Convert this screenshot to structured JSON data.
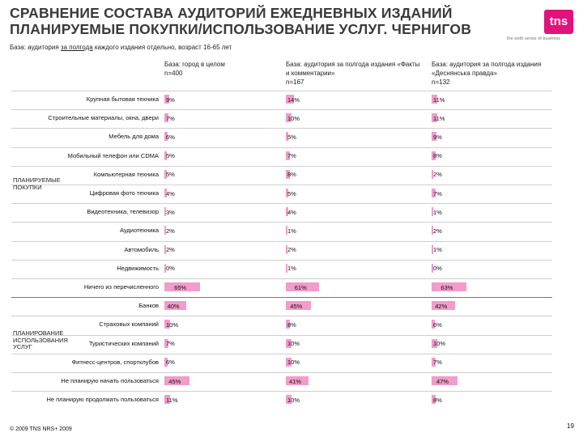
{
  "header": {
    "title": "СРАВНЕНИЕ СОСТАВА АУДИТОРИЙ ЕЖЕДНЕВНЫХ ИЗДАНИЙ ПЛАНИРУЕМЫЕ ПОКУПКИ/ИСПОЛЬЗОВАНИЕ УСЛУГ. ЧЕРНИГОВ",
    "subtitle_pre": "База: аудитория ",
    "subtitle_underlined": "за полгода",
    "subtitle_post": " каждого издания отдельно, возраст 16-65 лет",
    "logo_text": "tns",
    "logo_tagline": "the sixth sense of business"
  },
  "footer": {
    "copyright": "© 2009 TNS   NRS+ 2009",
    "page_number": "19"
  },
  "colors": {
    "bar": "#f29cca",
    "logo": "#e0127c"
  },
  "chart_data": {
    "type": "bar",
    "title": "СРАВНЕНИЕ СОСТАВА АУДИТОРИЙ ЕЖЕДНЕВНЫХ ИЗДАНИЙ ПЛАНИРУЕМЫЕ ПОКУПКИ/ИСПОЛЬЗОВАНИЕ УСЛУГ. ЧЕРНИГОВ",
    "value_unit": "%",
    "xlim": [
      0,
      100
    ],
    "groups": [
      {
        "name": "ПЛАНИРУЕМЫЕ ПОКУПКИ",
        "start": 0,
        "end": 10
      },
      {
        "name": "ПЛАНИРОВАНИЕ ИСПОЛЬЗОВАНИЯ УСЛУГ",
        "start": 11,
        "end": 16
      }
    ],
    "categories": [
      "Крупная бытовая техника",
      "Строительные материалы, окна, двери",
      "Мебель для дома",
      "Мобильный телефон или CDMA",
      "Компьютерная техника",
      "Цифровая фото техника",
      "Видеотехника, телевизор",
      "Аудиотехника",
      "Автомобиль",
      "Недвижимость",
      "Ничего из перечисленного",
      "Банков",
      "Страховых компаний",
      "Туристических компаний",
      "Фитнесс-центров, спортклубов",
      "Не планирую начать пользоваться",
      "Не планирую продолжать пользоваться"
    ],
    "series": [
      {
        "name": "База: город в целом",
        "base": "n=400",
        "values": [
          9,
          7,
          6,
          5,
          5,
          4,
          3,
          2,
          2,
          0,
          65,
          40,
          10,
          7,
          6,
          45,
          11
        ]
      },
      {
        "name": "База: аудитория за полгода издания «Факты и комментарии»",
        "base": "n=167",
        "values": [
          14,
          10,
          5,
          7,
          8,
          5,
          4,
          1,
          2,
          1,
          61,
          45,
          8,
          10,
          10,
          41,
          10
        ]
      },
      {
        "name": "База: аудитория за полгода издания «Деснянська правда»",
        "base": "n=132",
        "values": [
          11,
          11,
          9,
          8,
          2,
          7,
          1,
          2,
          1,
          0,
          63,
          42,
          6,
          10,
          7,
          47,
          8
        ]
      }
    ]
  }
}
